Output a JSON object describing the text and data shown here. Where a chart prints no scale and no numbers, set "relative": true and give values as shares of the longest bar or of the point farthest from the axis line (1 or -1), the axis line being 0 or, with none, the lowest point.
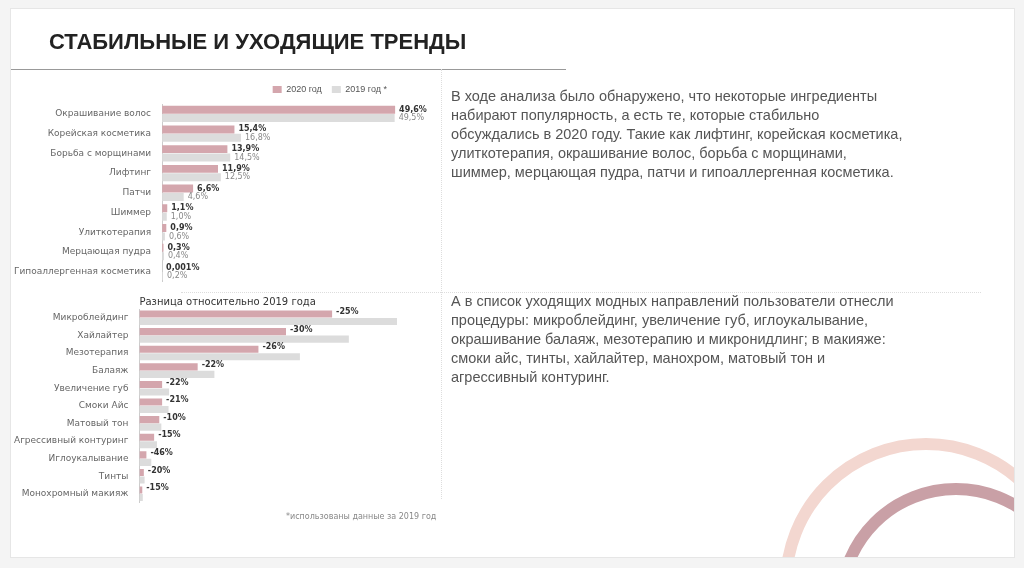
{
  "chart_data": [
    {
      "type": "bar",
      "orientation": "horizontal",
      "title": "СТАБИЛЬНЫЕ И УХОДЯЩИЕ ТРЕНДЫ",
      "categories": [
        "Окрашивание волос",
        "Корейская косметика",
        "Борьба с морщинами",
        "Лифтинг",
        "Патчи",
        "Шиммер",
        "Улиткотерапия",
        "Мерцающая пудра",
        "Гипоаллергенная косметика"
      ],
      "series": [
        {
          "name": "2020 год",
          "color": "#d4a6ad",
          "values": [
            49.6,
            15.4,
            13.9,
            11.9,
            6.6,
            1.1,
            0.9,
            0.3,
            0.001
          ],
          "value_labels": [
            "49,6%",
            "15,4%",
            "13,9%",
            "11,9%",
            "6,6%",
            "1,1%",
            "0,9%",
            "0,3%",
            "0,001%"
          ]
        },
        {
          "name": "2019 год *",
          "color": "#dcdcdc",
          "values": [
            49.5,
            16.8,
            14.5,
            12.5,
            4.6,
            1.0,
            0.6,
            0.4,
            0.2
          ],
          "value_labels": [
            "49,5%",
            "16,8%",
            "14,5%",
            "12,5%",
            "4,6%",
            "1,0%",
            "0,6%",
            "0,4%",
            "0,2%"
          ]
        }
      ],
      "legend": "top right",
      "annotations": [
        "В ходе анализа было обнаружено, что некоторые ингредиенты набирают популярность, а есть те, которые стабильно обсуждались в 2020 году. Такие как лифтинг, корейская косметика, улиткотерапия, окрашивание волос, борьба с морщинами, шиммер, мерцающая пудра, патчи и гипоаллергенная косметика."
      ]
    },
    {
      "type": "bar",
      "orientation": "horizontal",
      "relative": true,
      "title": "Разница относительно 2019 года",
      "categories": [
        "Микроблейдинг",
        "Хайлайтер",
        "Мезотерапия",
        "Балаяж",
        "Увеличение губ",
        "Смоки Айс",
        "Матовый тон",
        "Агрессивный контуринг",
        "Иглоукалывание",
        "Тинты",
        "Монохромный макияж"
      ],
      "series": [
        {
          "color": "#d4a6ad",
          "values": [
            0.748,
            0.569,
            0.462,
            0.226,
            0.088,
            0.088,
            0.077,
            0.057,
            0.027,
            0.017,
            0.011
          ]
        },
        {
          "color": "#dcdcdc",
          "values": [
            1,
            0.813,
            0.623,
            0.291,
            0.115,
            0.113,
            0.085,
            0.068,
            0.046,
            0.02,
            0.013
          ]
        }
      ],
      "legend": false,
      "annotations": [
        {
          "text": "-25%",
          "x": 0.748,
          "y": "Микроблейдинг"
        },
        {
          "text": "-30%",
          "x": 0.569,
          "y": "Хайлайтер"
        },
        {
          "text": "-26%",
          "x": 0.462,
          "y": "Мезотерапия"
        },
        {
          "text": "-22%",
          "x": 0.226,
          "y": "Балаяж"
        },
        {
          "text": "-22%",
          "x": 0.088,
          "y": "Увеличение губ"
        },
        {
          "text": "-21%",
          "x": 0.088,
          "y": "Смоки Айс"
        },
        {
          "text": "-10%",
          "x": 0.077,
          "y": "Матовый тон"
        },
        {
          "text": "-15%",
          "x": 0.057,
          "y": "Агрессивный контуринг"
        },
        {
          "text": "-46%",
          "x": 0.027,
          "y": "Иглоукалывание"
        },
        {
          "text": "-20%",
          "x": 0.017,
          "y": "Тинты"
        },
        {
          "text": "-15%",
          "x": 0.011,
          "y": "Монохромный макияж"
        },
        "*использованы данные за 2019 год",
        "А в список уходящих модных направлений пользователи отнесли процедуры: микроблейдинг, увеличение губ, иглоукалывание, окрашивание балаяж, мезотерапию и микронидлинг; в макияже: смоки айс, тинты, хайлайтер, манохром, матовый тон и агрессивный контуринг."
      ]
    }
  ]
}
